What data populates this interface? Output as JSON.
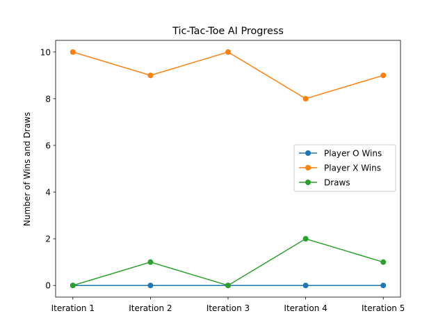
{
  "chart_data": {
    "type": "line",
    "title": "Tic-Tac-Toe AI Progress",
    "xlabel": "",
    "ylabel": "Number of Wins and Draws",
    "categories": [
      "Iteration 1",
      "Iteration 2",
      "Iteration 3",
      "Iteration 4",
      "Iteration 5"
    ],
    "ylim": [
      -0.5,
      10.5
    ],
    "yticks": [
      0,
      2,
      4,
      6,
      8,
      10
    ],
    "grid": false,
    "legend_position": "center-right",
    "series": [
      {
        "name": "Player O Wins",
        "values": [
          0,
          0,
          0,
          0,
          0
        ],
        "color": "#1f77b4",
        "marker": "circle"
      },
      {
        "name": "Player X Wins",
        "values": [
          10,
          9,
          10,
          8,
          9
        ],
        "color": "#ff7f0e",
        "marker": "circle"
      },
      {
        "name": "Draws",
        "values": [
          0,
          1,
          0,
          2,
          1
        ],
        "color": "#2ca02c",
        "marker": "circle"
      }
    ]
  }
}
